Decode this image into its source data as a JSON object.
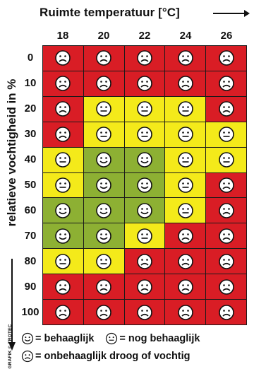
{
  "title": "Ruimte temperatuur [°C]",
  "ylabel": "relatieve vochtigheid in %",
  "source_text": "GRAFIK © TROTEC",
  "columns": [
    "18",
    "20",
    "22",
    "24",
    "26"
  ],
  "rows": [
    "0",
    "10",
    "20",
    "30",
    "40",
    "50",
    "60",
    "70",
    "80",
    "90",
    "100"
  ],
  "colors": {
    "comfortable": "#8db033",
    "still_comfortable": "#f4ea1a",
    "uncomfortable": "#d91d25"
  },
  "grid": [
    [
      "uncomfortable",
      "uncomfortable",
      "uncomfortable",
      "uncomfortable",
      "uncomfortable"
    ],
    [
      "uncomfortable",
      "uncomfortable",
      "uncomfortable",
      "uncomfortable",
      "uncomfortable"
    ],
    [
      "uncomfortable",
      "still_comfortable",
      "still_comfortable",
      "still_comfortable",
      "uncomfortable"
    ],
    [
      "uncomfortable",
      "still_comfortable",
      "still_comfortable",
      "still_comfortable",
      "still_comfortable"
    ],
    [
      "still_comfortable",
      "comfortable",
      "comfortable",
      "still_comfortable",
      "still_comfortable"
    ],
    [
      "still_comfortable",
      "comfortable",
      "comfortable",
      "still_comfortable",
      "uncomfortable"
    ],
    [
      "comfortable",
      "comfortable",
      "comfortable",
      "still_comfortable",
      "uncomfortable"
    ],
    [
      "comfortable",
      "comfortable",
      "still_comfortable",
      "uncomfortable",
      "uncomfortable"
    ],
    [
      "still_comfortable",
      "still_comfortable",
      "uncomfortable",
      "uncomfortable",
      "uncomfortable"
    ],
    [
      "uncomfortable",
      "uncomfortable",
      "uncomfortable",
      "uncomfortable",
      "uncomfortable"
    ],
    [
      "uncomfortable",
      "uncomfortable",
      "uncomfortable",
      "uncomfortable",
      "uncomfortable"
    ]
  ],
  "legend": {
    "comfortable": "= behaaglijk",
    "still_comfortable": "= nog behaaglijk",
    "uncomfortable": "= onbehaaglijk droog of vochtig"
  }
}
